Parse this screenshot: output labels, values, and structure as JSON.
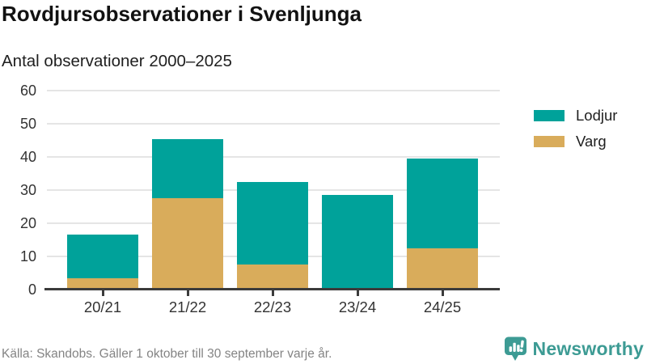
{
  "header": {
    "title": "Rovdjursobservationer i Svenljunga",
    "subtitle": "Antal observationer 2000–2025"
  },
  "chart_data": {
    "type": "bar",
    "stacked": true,
    "categories": [
      "20/21",
      "21/22",
      "22/23",
      "23/24",
      "24/25"
    ],
    "series": [
      {
        "name": "Varg",
        "color": "#d9ac5b",
        "values": [
          3,
          27,
          7,
          0,
          12
        ]
      },
      {
        "name": "Lodjur",
        "color": "#00a29a",
        "values": [
          13,
          18,
          25,
          28,
          27
        ]
      }
    ],
    "totals": [
      16,
      45,
      32,
      28,
      39
    ],
    "title": "Rovdjursobservationer i Svenljunga",
    "subtitle": "Antal observationer 2000–2025",
    "xlabel": "",
    "ylabel": "",
    "ylim": [
      0,
      60
    ],
    "yticks": [
      0,
      10,
      20,
      30,
      40,
      50,
      60
    ],
    "grid": "horizontal",
    "legend_position": "right"
  },
  "legend": {
    "items": [
      {
        "label": "Lodjur",
        "color": "#00a29a"
      },
      {
        "label": "Varg",
        "color": "#d9ac5b"
      }
    ]
  },
  "footer": {
    "source": "Källa: Skandobs. Gäller 1 oktober till 30 september varje år.",
    "brand": "Newsworthy"
  },
  "colors": {
    "lodjur": "#00a29a",
    "varg": "#d9ac5b",
    "brand_teal": "#3d9b94",
    "gridline": "#e5e5e5",
    "axis": "#3b3b3b",
    "muted_text": "#848484"
  }
}
